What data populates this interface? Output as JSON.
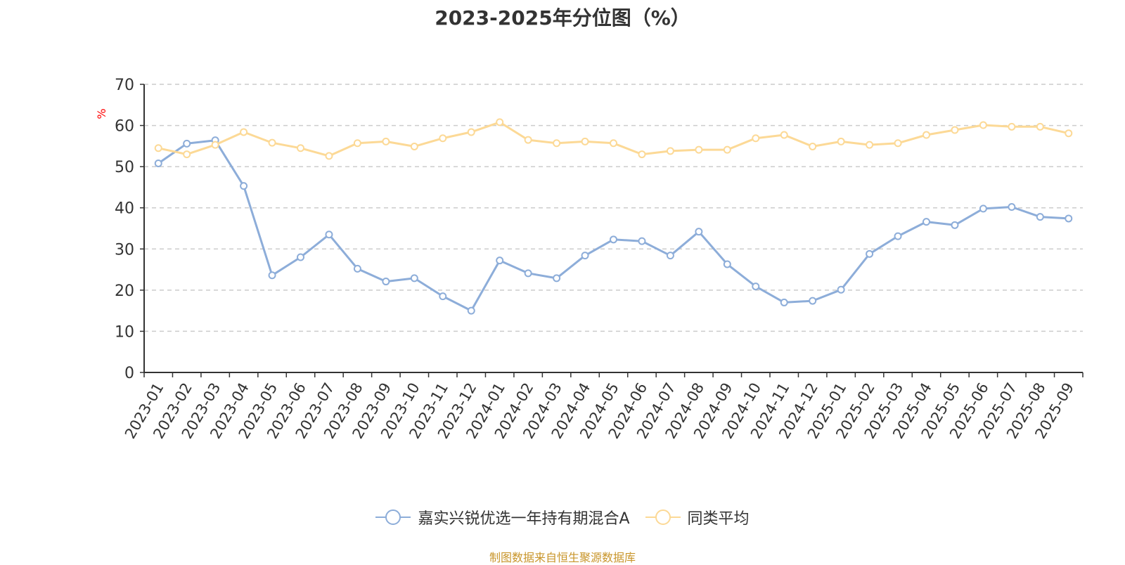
{
  "colors": {
    "series1": "#8dadd9",
    "series2": "#fcd996",
    "axis": "#333333",
    "grid": "#cccccc",
    "unit": "#ff0000",
    "source": "#c8952a"
  },
  "chart_data": {
    "type": "line",
    "title": "2023-2025年分位图（%）",
    "ylabel": "%",
    "xlabel": "",
    "ylim": [
      0,
      70
    ],
    "yticks": [
      0,
      10,
      20,
      30,
      40,
      50,
      60,
      70
    ],
    "grid": true,
    "legend_position": "bottom-center",
    "categories": [
      "2023-01",
      "2023-02",
      "2023-03",
      "2023-04",
      "2023-05",
      "2023-06",
      "2023-07",
      "2023-08",
      "2023-09",
      "2023-10",
      "2023-11",
      "2023-12",
      "2024-01",
      "2024-02",
      "2024-03",
      "2024-04",
      "2024-05",
      "2024-06",
      "2024-07",
      "2024-08",
      "2024-09",
      "2024-10",
      "2024-11",
      "2024-12",
      "2025-01",
      "2025-02",
      "2025-03",
      "2025-04",
      "2025-05",
      "2025-06",
      "2025-07",
      "2025-08",
      "2025-09"
    ],
    "series": [
      {
        "name": "嘉实兴锐优选一年持有期混合A",
        "color": "#8dadd9",
        "values": [
          50.8,
          55.6,
          56.4,
          45.3,
          23.6,
          28.0,
          33.5,
          25.2,
          22.1,
          22.9,
          18.5,
          15.0,
          27.2,
          24.1,
          22.9,
          28.4,
          32.3,
          31.9,
          28.4,
          34.2,
          26.3,
          20.9,
          17.0,
          17.4,
          20.1,
          28.8,
          33.1,
          36.6,
          35.8,
          39.8,
          40.2,
          37.8,
          37.4
        ]
      },
      {
        "name": "同类平均",
        "color": "#fcd996",
        "values": [
          54.5,
          53.0,
          55.3,
          58.4,
          55.8,
          54.5,
          52.6,
          55.7,
          56.1,
          54.9,
          56.9,
          58.4,
          60.8,
          56.5,
          55.7,
          56.1,
          55.7,
          53.0,
          53.8,
          54.1,
          54.1,
          56.9,
          57.7,
          54.9,
          56.1,
          55.3,
          55.7,
          57.7,
          58.9,
          60.1,
          59.7,
          59.7,
          58.1
        ]
      }
    ]
  },
  "source_text": "制图数据来自恒生聚源数据库"
}
